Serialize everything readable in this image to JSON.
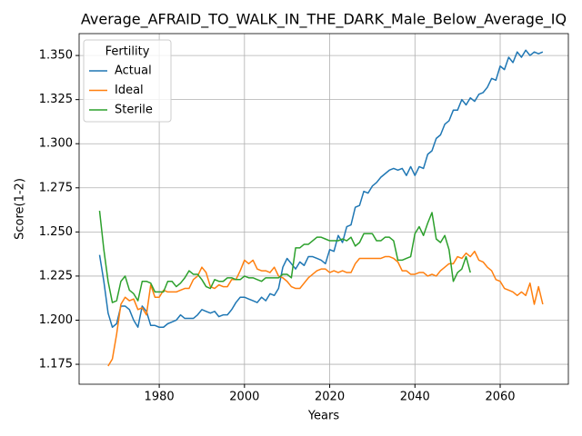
{
  "chart_data": {
    "type": "line",
    "title": "Average_AFRAID_TO_WALK_IN_THE_DARK_Male_Below_Average_IQ",
    "x_label": "Years",
    "y_label": "Score(1-2)",
    "legend_title": "Fertility",
    "legend": "upper left",
    "grid": true,
    "xlim": [
      1961.2,
      2076
    ],
    "ylim": [
      1.1637,
      1.3624
    ],
    "xticks": [
      1980,
      2000,
      2020,
      2040,
      2060
    ],
    "yticks": [
      1.175,
      {
        "value": 1.2,
        "label": "1.200"
      },
      1.225,
      {
        "value": 1.25,
        "label": "1.250"
      },
      1.275,
      {
        "value": 1.3,
        "label": "1.300"
      },
      1.325,
      {
        "value": 1.35,
        "label": "1.350"
      }
    ],
    "series": [
      {
        "name": "Actual",
        "color": "#1f77b4",
        "x": [
          1966,
          1967,
          1968,
          1969,
          1970,
          1971,
          1972,
          1973,
          1974,
          1975,
          1976,
          1977,
          1978,
          1979,
          1980,
          1981,
          1982,
          1983,
          1984,
          1985,
          1986,
          1987,
          1988,
          1989,
          1990,
          1991,
          1992,
          1993,
          1994,
          1995,
          1996,
          1997,
          1998,
          1999,
          2000,
          2001,
          2002,
          2003,
          2004,
          2005,
          2006,
          2007,
          2008,
          2009,
          2010,
          2011,
          2012,
          2013,
          2014,
          2015,
          2016,
          2017,
          2018,
          2019,
          2020,
          2021,
          2022,
          2023,
          2024,
          2025,
          2026,
          2027,
          2028,
          2029,
          2030,
          2031,
          2032,
          2033,
          2034,
          2035,
          2036,
          2037,
          2038,
          2039,
          2040,
          2041,
          2042,
          2043,
          2044,
          2045,
          2046,
          2047,
          2048,
          2049,
          2050,
          2051,
          2052,
          2053,
          2054,
          2055,
          2056,
          2057,
          2058,
          2059,
          2060,
          2061,
          2062,
          2063,
          2064,
          2065,
          2066,
          2067,
          2068,
          2069,
          2070
        ],
        "values": [
          1.237,
          1.222,
          1.204,
          1.196,
          1.198,
          1.208,
          1.208,
          1.206,
          1.2,
          1.196,
          1.208,
          1.205,
          1.197,
          1.197,
          1.196,
          1.196,
          1.198,
          1.199,
          1.2,
          1.203,
          1.201,
          1.201,
          1.201,
          1.203,
          1.206,
          1.205,
          1.204,
          1.205,
          1.202,
          1.203,
          1.203,
          1.206,
          1.21,
          1.213,
          1.213,
          1.212,
          1.211,
          1.21,
          1.213,
          1.211,
          1.215,
          1.214,
          1.218,
          1.23,
          1.235,
          1.232,
          1.229,
          1.233,
          1.231,
          1.236,
          1.236,
          1.235,
          1.234,
          1.232,
          1.24,
          1.239,
          1.248,
          1.244,
          1.253,
          1.254,
          1.264,
          1.265,
          1.273,
          1.272,
          1.276,
          1.278,
          1.281,
          1.283,
          1.285,
          1.286,
          1.285,
          1.286,
          1.282,
          1.287,
          1.282,
          1.287,
          1.286,
          1.294,
          1.296,
          1.303,
          1.305,
          1.311,
          1.313,
          1.319,
          1.319,
          1.325,
          1.322,
          1.326,
          1.324,
          1.328,
          1.329,
          1.332,
          1.337,
          1.336,
          1.344,
          1.342,
          1.349,
          1.346,
          1.352,
          1.349,
          1.353,
          1.35,
          1.352,
          1.351,
          1.352
        ]
      },
      {
        "name": "Ideal",
        "color": "#ff7f0e",
        "x": [
          1968,
          1969,
          1970,
          1971,
          1972,
          1973,
          1974,
          1975,
          1976,
          1977,
          1978,
          1979,
          1980,
          1981,
          1982,
          1983,
          1984,
          1985,
          1986,
          1987,
          1988,
          1989,
          1990,
          1991,
          1992,
          1993,
          1994,
          1995,
          1996,
          1997,
          1998,
          1999,
          2000,
          2001,
          2002,
          2003,
          2004,
          2005,
          2006,
          2007,
          2008,
          2009,
          2010,
          2011,
          2012,
          2013,
          2014,
          2015,
          2016,
          2017,
          2018,
          2019,
          2020,
          2021,
          2022,
          2023,
          2024,
          2025,
          2026,
          2027,
          2028,
          2029,
          2030,
          2031,
          2032,
          2033,
          2034,
          2035,
          2036,
          2037,
          2038,
          2039,
          2040,
          2041,
          2042,
          2043,
          2044,
          2045,
          2046,
          2047,
          2048,
          2049,
          2050,
          2051,
          2052,
          2053,
          2054,
          2055,
          2056,
          2057,
          2058,
          2059,
          2060,
          2061,
          2062,
          2063,
          2064,
          2065,
          2066,
          2067,
          2068,
          2069,
          2070
        ],
        "values": [
          1.174,
          1.178,
          1.192,
          1.209,
          1.213,
          1.211,
          1.212,
          1.206,
          1.207,
          1.203,
          1.22,
          1.213,
          1.213,
          1.217,
          1.216,
          1.216,
          1.216,
          1.217,
          1.218,
          1.218,
          1.223,
          1.225,
          1.23,
          1.227,
          1.219,
          1.218,
          1.22,
          1.219,
          1.219,
          1.223,
          1.223,
          1.228,
          1.234,
          1.232,
          1.234,
          1.229,
          1.228,
          1.228,
          1.227,
          1.23,
          1.225,
          1.224,
          1.222,
          1.219,
          1.218,
          1.218,
          1.221,
          1.224,
          1.226,
          1.228,
          1.229,
          1.229,
          1.227,
          1.228,
          1.227,
          1.228,
          1.227,
          1.227,
          1.232,
          1.235,
          1.235,
          1.235,
          1.235,
          1.235,
          1.235,
          1.236,
          1.236,
          1.235,
          1.233,
          1.228,
          1.228,
          1.226,
          1.226,
          1.227,
          1.227,
          1.225,
          1.226,
          1.225,
          1.228,
          1.23,
          1.232,
          1.232,
          1.236,
          1.235,
          1.238,
          1.236,
          1.239,
          1.234,
          1.233,
          1.23,
          1.228,
          1.223,
          1.222,
          1.218,
          1.217,
          1.216,
          1.214,
          1.216,
          1.214,
          1.221,
          1.209,
          1.219,
          1.209
        ]
      },
      {
        "name": "Sterile",
        "color": "#2ca02c",
        "x": [
          1966,
          1967,
          1968,
          1969,
          1970,
          1971,
          1972,
          1973,
          1974,
          1975,
          1976,
          1977,
          1978,
          1979,
          1980,
          1981,
          1982,
          1983,
          1984,
          1985,
          1986,
          1987,
          1988,
          1989,
          1990,
          1991,
          1992,
          1993,
          1994,
          1995,
          1996,
          1997,
          1998,
          1999,
          2000,
          2001,
          2002,
          2003,
          2004,
          2005,
          2006,
          2007,
          2008,
          2009,
          2010,
          2011,
          2012,
          2013,
          2014,
          2015,
          2016,
          2017,
          2018,
          2019,
          2020,
          2021,
          2022,
          2023,
          2024,
          2025,
          2026,
          2027,
          2028,
          2029,
          2030,
          2031,
          2032,
          2033,
          2034,
          2035,
          2036,
          2037,
          2038,
          2039,
          2040,
          2041,
          2042,
          2043,
          2044,
          2045,
          2046,
          2047,
          2048,
          2049,
          2050,
          2051,
          2052,
          2053
        ],
        "values": [
          1.262,
          1.24,
          1.222,
          1.21,
          1.211,
          1.222,
          1.225,
          1.217,
          1.215,
          1.211,
          1.222,
          1.222,
          1.221,
          1.216,
          1.216,
          1.216,
          1.222,
          1.222,
          1.219,
          1.221,
          1.224,
          1.228,
          1.226,
          1.226,
          1.223,
          1.219,
          1.218,
          1.223,
          1.222,
          1.222,
          1.224,
          1.224,
          1.223,
          1.223,
          1.225,
          1.224,
          1.224,
          1.223,
          1.222,
          1.224,
          1.224,
          1.224,
          1.224,
          1.226,
          1.226,
          1.224,
          1.241,
          1.241,
          1.243,
          1.243,
          1.245,
          1.247,
          1.247,
          1.246,
          1.245,
          1.245,
          1.245,
          1.246,
          1.245,
          1.247,
          1.242,
          1.244,
          1.249,
          1.249,
          1.249,
          1.245,
          1.245,
          1.247,
          1.247,
          1.245,
          1.234,
          1.234,
          1.235,
          1.236,
          1.249,
          1.253,
          1.248,
          1.255,
          1.261,
          1.246,
          1.244,
          1.248,
          1.24,
          1.222,
          1.227,
          1.229,
          1.236,
          1.227
        ]
      }
    ]
  }
}
